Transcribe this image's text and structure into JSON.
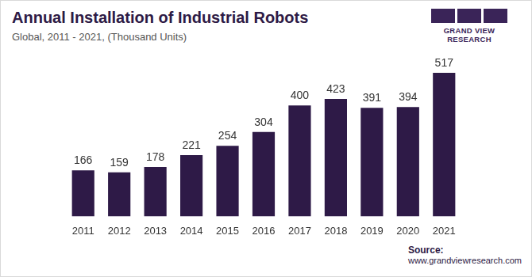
{
  "chart_data": {
    "type": "bar",
    "title": "Annual Installation of Industrial Robots",
    "subtitle": "Global, 2011 - 2021, (Thousand Units)",
    "categories": [
      "2011",
      "2012",
      "2013",
      "2014",
      "2015",
      "2016",
      "2017",
      "2018",
      "2019",
      "2020",
      "2021"
    ],
    "values": [
      166,
      159,
      178,
      221,
      254,
      304,
      400,
      423,
      391,
      394,
      517
    ],
    "color": "#2e1a47",
    "ylim": [
      0,
      600
    ],
    "grid": false,
    "data_labels": true,
    "tick_labels": "x"
  },
  "branding": {
    "logo_text": "GRAND VIEW RESEARCH"
  },
  "source": {
    "label": "Source:",
    "url": "www.grandviewresearch.com"
  }
}
